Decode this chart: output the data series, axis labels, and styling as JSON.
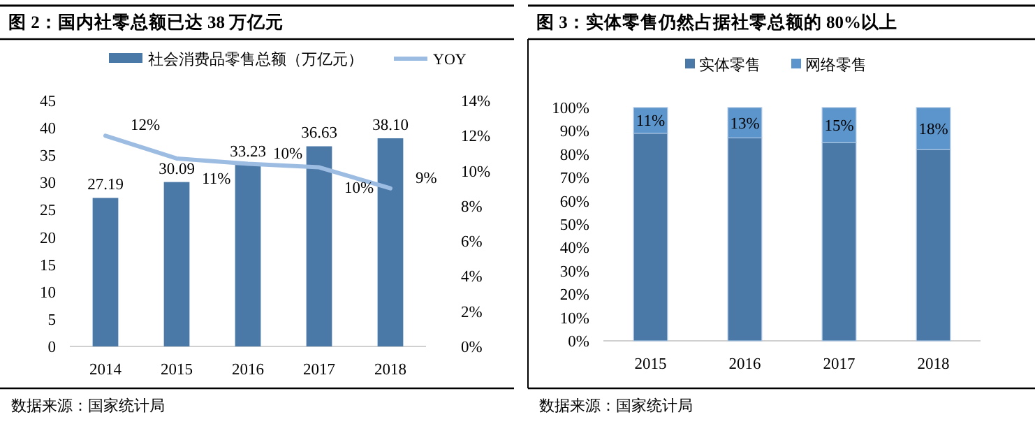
{
  "chart_data": [
    {
      "type": "bar",
      "title": "图 2：国内社零总额已达 38 万亿元",
      "categories": [
        "2014",
        "2015",
        "2016",
        "2017",
        "2018"
      ],
      "series": [
        {
          "name": "社会消费品零售总额（万亿元）",
          "type": "bar",
          "color": "#4a78a7",
          "values": [
            27.19,
            30.09,
            33.23,
            36.63,
            38.1
          ],
          "value_labels": [
            "27.19",
            "30.09",
            "33.23",
            "36.63",
            "38.10"
          ]
        },
        {
          "name": "YOY",
          "type": "line",
          "axis": "y2",
          "color": "#9dbce2",
          "values": [
            12.0,
            10.7,
            10.4,
            10.2,
            9.0
          ],
          "value_labels": [
            "12%",
            "11%",
            "10%",
            "10%",
            "9%"
          ]
        }
      ],
      "ylim": [
        0,
        45
      ],
      "yticks": [
        0,
        5,
        10,
        15,
        20,
        25,
        30,
        35,
        40,
        45
      ],
      "y2lim": [
        0,
        14
      ],
      "y2ticks": [
        {
          "value": 0,
          "label": "0%"
        },
        {
          "value": 2,
          "label": "2%"
        },
        {
          "value": 4,
          "label": "4%"
        },
        {
          "value": 6,
          "label": "6%"
        },
        {
          "value": 8,
          "label": "8%"
        },
        {
          "value": 10,
          "label": "10%"
        },
        {
          "value": 12,
          "label": "12%"
        },
        {
          "value": 14,
          "label": "14%"
        }
      ],
      "legend": "top",
      "grid": false,
      "annotations": [
        "数据来源：国家统计局"
      ]
    },
    {
      "type": "bar",
      "title": "图 3：实体零售仍然占据社零总额的 80%以上",
      "categories": [
        "2015",
        "2016",
        "2017",
        "2018"
      ],
      "stacked": true,
      "series": [
        {
          "name": "实体零售",
          "color": "#4a78a7",
          "values": [
            89,
            87,
            85,
            82
          ]
        },
        {
          "name": "网络零售",
          "color": "#5b95cc",
          "values": [
            11,
            13,
            15,
            18
          ],
          "value_labels": [
            "11%",
            "13%",
            "15%",
            "18%"
          ]
        }
      ],
      "ylim": [
        0,
        100
      ],
      "yticks": [
        {
          "value": 0,
          "label": "0%"
        },
        {
          "value": 10,
          "label": "10%"
        },
        {
          "value": 20,
          "label": "20%"
        },
        {
          "value": 30,
          "label": "30%"
        },
        {
          "value": 40,
          "label": "40%"
        },
        {
          "value": 50,
          "label": "50%"
        },
        {
          "value": 60,
          "label": "60%"
        },
        {
          "value": 70,
          "label": "70%"
        },
        {
          "value": 80,
          "label": "80%"
        },
        {
          "value": 90,
          "label": "90%"
        },
        {
          "value": 100,
          "label": "100%"
        }
      ],
      "legend": "top",
      "grid": false,
      "annotations": [
        "数据来源：国家统计局"
      ]
    }
  ]
}
